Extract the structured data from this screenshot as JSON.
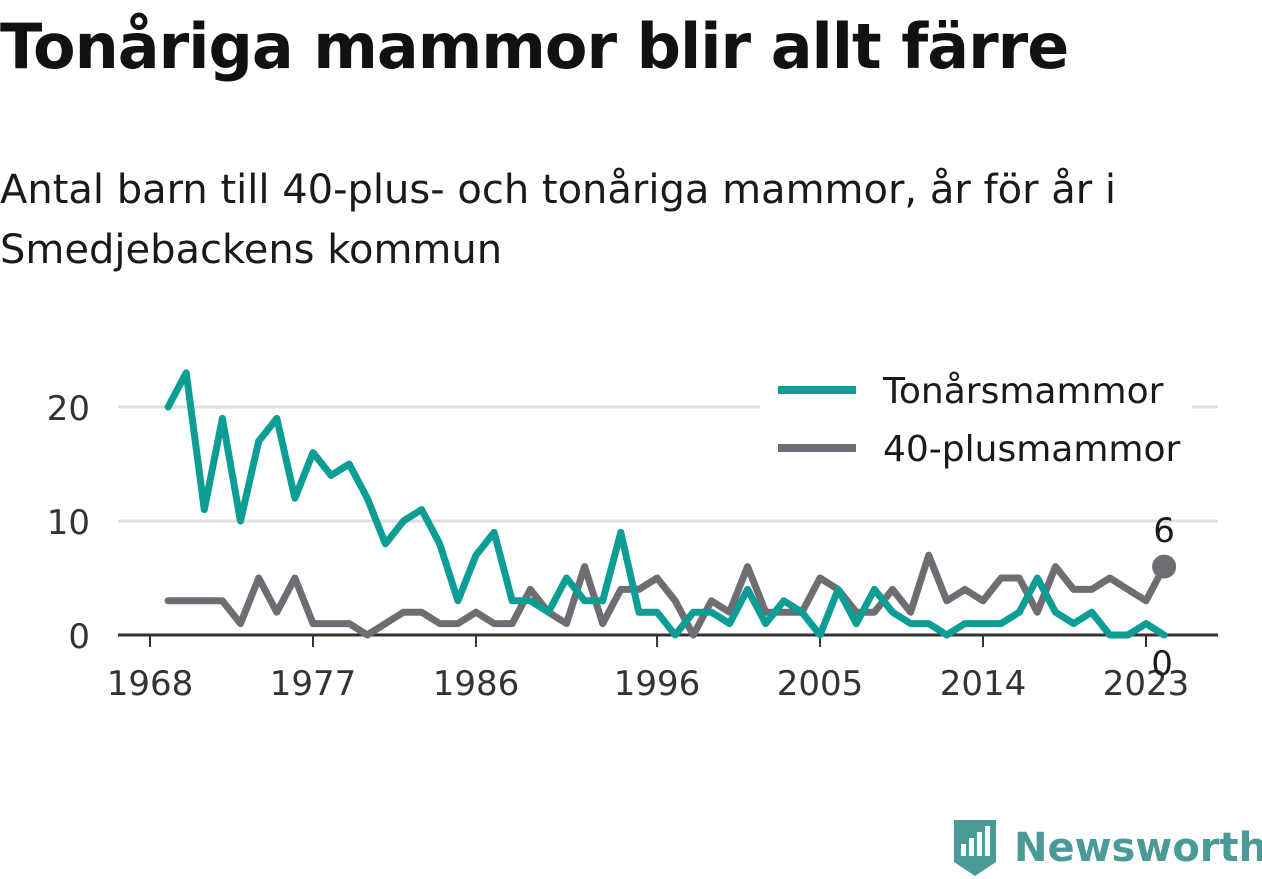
{
  "title": "Tonåriga mammor blir allt färre",
  "subtitle": "Antal barn till 40-plus- och tonåriga mammor, år för år i Smedjebackens kommun",
  "brand": "Newsworthy",
  "colors": {
    "teen": "#0c9e94",
    "plus40": "#6d6d73",
    "grid": "#dedede",
    "axis": "#333333",
    "brand": "#4a9a98"
  },
  "chart_data": {
    "type": "line",
    "x": [
      1969,
      1970,
      1971,
      1972,
      1973,
      1974,
      1975,
      1976,
      1977,
      1978,
      1979,
      1980,
      1981,
      1982,
      1983,
      1984,
      1985,
      1986,
      1987,
      1988,
      1989,
      1990,
      1991,
      1992,
      1993,
      1994,
      1995,
      1996,
      1997,
      1998,
      1999,
      2000,
      2001,
      2002,
      2003,
      2004,
      2005,
      2006,
      2007,
      2008,
      2009,
      2010,
      2011,
      2012,
      2013,
      2014,
      2015,
      2016,
      2017,
      2018,
      2019,
      2020,
      2021,
      2022,
      2023,
      2024
    ],
    "series": [
      {
        "name": "Tonårsmammor",
        "color": "#0c9e94",
        "values": [
          20,
          23,
          11,
          19,
          10,
          17,
          19,
          12,
          16,
          14,
          15,
          12,
          8,
          10,
          11,
          8,
          3,
          7,
          9,
          3,
          3,
          2,
          5,
          3,
          3,
          9,
          2,
          2,
          0,
          2,
          2,
          1,
          4,
          1,
          3,
          2,
          0,
          4,
          1,
          4,
          2,
          1,
          1,
          0,
          1,
          1,
          1,
          2,
          5,
          2,
          1,
          2,
          0,
          0,
          1,
          0
        ]
      },
      {
        "name": "40-plusmammor",
        "color": "#6d6d73",
        "values": [
          3,
          3,
          3,
          3,
          1,
          5,
          2,
          5,
          1,
          1,
          1,
          0,
          1,
          2,
          2,
          1,
          1,
          2,
          1,
          1,
          4,
          2,
          1,
          6,
          1,
          4,
          4,
          5,
          3,
          0,
          3,
          2,
          6,
          2,
          2,
          2,
          5,
          4,
          2,
          2,
          4,
          2,
          7,
          3,
          4,
          3,
          5,
          5,
          2,
          6,
          4,
          4,
          5,
          4,
          3,
          6
        ]
      }
    ],
    "x_ticks": [
      "1968",
      "1977",
      "1986",
      "1996",
      "2005",
      "2014",
      "2023"
    ],
    "y_ticks": [
      "0",
      "10",
      "20"
    ],
    "ylim": [
      0,
      25
    ],
    "end_labels": [
      "6",
      "0"
    ],
    "legend": "top-right",
    "grid": true
  }
}
